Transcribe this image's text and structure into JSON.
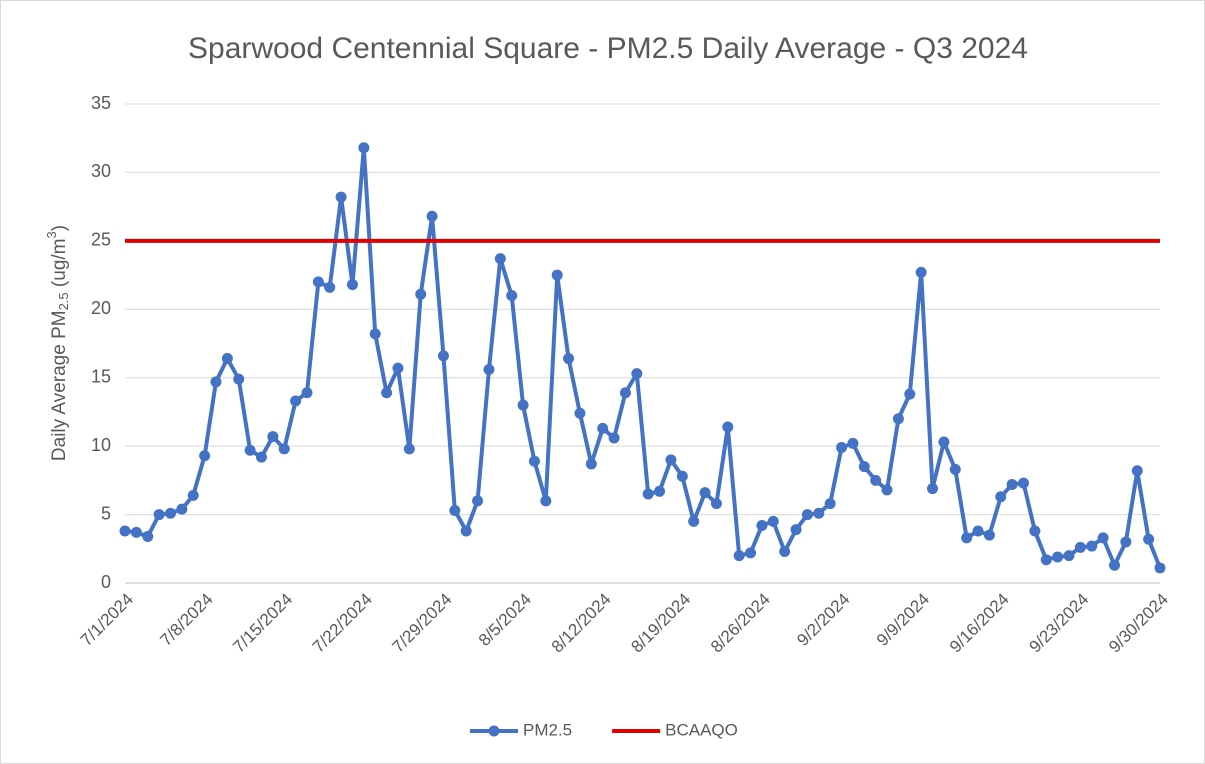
{
  "chart_data": {
    "type": "line",
    "title": "Sparwood Centennial Square - PM2.5 Daily Average - Q3 2024",
    "ylabel": [
      "Daily Average PM",
      "2.5",
      " (ug/m",
      "3",
      ")"
    ],
    "categories": [
      "7/1/2024",
      null,
      null,
      null,
      null,
      null,
      null,
      "7/8/2024",
      null,
      null,
      null,
      null,
      null,
      null,
      "7/15/2024",
      null,
      null,
      null,
      null,
      null,
      null,
      "7/22/2024",
      null,
      null,
      null,
      null,
      null,
      null,
      "7/29/2024",
      null,
      null,
      null,
      null,
      null,
      null,
      "8/5/2024",
      null,
      null,
      null,
      null,
      null,
      null,
      "8/12/2024",
      null,
      null,
      null,
      null,
      null,
      null,
      "8/19/2024",
      null,
      null,
      null,
      null,
      null,
      null,
      "8/26/2024",
      null,
      null,
      null,
      null,
      null,
      null,
      "9/2/2024",
      null,
      null,
      null,
      null,
      null,
      null,
      "9/9/2024",
      null,
      null,
      null,
      null,
      null,
      null,
      "9/16/2024",
      null,
      null,
      null,
      null,
      null,
      null,
      "9/23/2024",
      null,
      null,
      null,
      null,
      null,
      null,
      "9/30/2024"
    ],
    "series": [
      {
        "name": "PM2.5",
        "color": "#4472c4",
        "markers": true,
        "values": [
          3.8,
          3.7,
          3.4,
          5.0,
          5.1,
          5.4,
          6.4,
          9.3,
          14.7,
          16.4,
          14.9,
          9.7,
          9.2,
          10.7,
          9.8,
          13.3,
          13.9,
          22.0,
          21.6,
          28.2,
          21.8,
          31.8,
          18.2,
          13.9,
          15.7,
          9.8,
          21.1,
          26.8,
          16.6,
          5.3,
          3.8,
          6.0,
          15.6,
          23.7,
          21.0,
          13.0,
          8.9,
          6.0,
          22.5,
          16.4,
          12.4,
          8.7,
          11.3,
          10.6,
          13.9,
          15.3,
          6.5,
          6.7,
          9.0,
          7.8,
          4.5,
          6.6,
          5.8,
          11.4,
          2.0,
          2.2,
          4.2,
          4.5,
          2.3,
          3.9,
          5.0,
          5.1,
          5.8,
          9.9,
          10.2,
          8.5,
          7.5,
          6.8,
          12.0,
          13.8,
          22.7,
          6.9,
          10.3,
          8.3,
          3.3,
          3.8,
          3.5,
          6.3,
          7.2,
          7.3,
          3.8,
          1.7,
          1.9,
          2.0,
          2.6,
          2.7,
          3.3,
          1.3,
          3.0,
          8.2,
          3.2,
          1.1
        ]
      },
      {
        "name": "BCAAQO",
        "color": "#e00000",
        "markers": false,
        "values": [
          25,
          25,
          25,
          25,
          25,
          25,
          25,
          25,
          25,
          25,
          25,
          25,
          25,
          25,
          25,
          25,
          25,
          25,
          25,
          25,
          25,
          25,
          25,
          25,
          25,
          25,
          25,
          25,
          25,
          25,
          25,
          25,
          25,
          25,
          25,
          25,
          25,
          25,
          25,
          25,
          25,
          25,
          25,
          25,
          25,
          25,
          25,
          25,
          25,
          25,
          25,
          25,
          25,
          25,
          25,
          25,
          25,
          25,
          25,
          25,
          25,
          25,
          25,
          25,
          25,
          25,
          25,
          25,
          25,
          25,
          25,
          25,
          25,
          25,
          25,
          25,
          25,
          25,
          25,
          25,
          25,
          25,
          25,
          25,
          25,
          25,
          25,
          25,
          25,
          25,
          25,
          25
        ]
      }
    ],
    "ylim": [
      0,
      35
    ],
    "yticks": [
      0,
      5,
      10,
      15,
      20,
      25,
      30,
      35
    ],
    "grid": true,
    "legend": "bottom"
  }
}
